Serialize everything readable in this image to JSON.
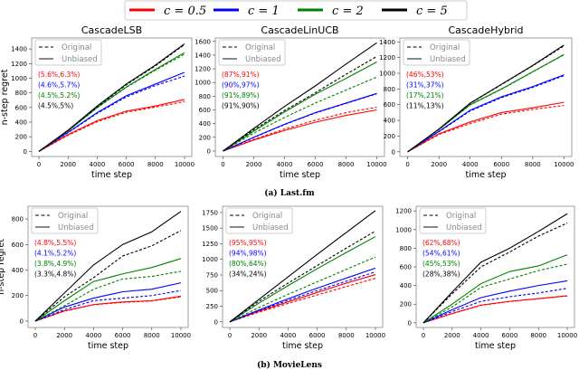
{
  "legend": {
    "position": "top-center",
    "entries": [
      {
        "label": "c = 0.5",
        "color": "#ff0000"
      },
      {
        "label": "c = 1",
        "color": "#0000ff"
      },
      {
        "label": "c = 2",
        "color": "#008000"
      },
      {
        "label": "c = 5",
        "color": "#000000"
      }
    ]
  },
  "captions": [
    "(a) Last.fm",
    "(b) MovieLens"
  ],
  "chart_data": [
    {
      "type": "line",
      "title": "CascadeLSB",
      "dataset": "Last.fm",
      "xlabel": "time step",
      "ylabel": "n-step regret",
      "xlim": [
        -500,
        10500
      ],
      "ylim": [
        -70,
        1550
      ],
      "xticks": [
        0,
        2000,
        4000,
        6000,
        8000,
        10000
      ],
      "yticks": [
        0,
        200,
        400,
        600,
        800,
        1000,
        1200,
        1400
      ],
      "style_legend": [
        "Original",
        "Unbiased"
      ],
      "annotations": [
        "(5.6%,6.3%)",
        "(4.6%,5.7%)",
        "(4.5%,5.2%)",
        "(4.5%,5%)"
      ],
      "x": [
        0,
        2000,
        4000,
        6000,
        8000,
        10000
      ],
      "series": [
        {
          "c": "0.5",
          "unbiased": [
            0,
            230,
            420,
            550,
            620,
            710
          ],
          "original": [
            0,
            220,
            405,
            535,
            605,
            680
          ]
        },
        {
          "c": "1",
          "unbiased": [
            0,
            260,
            530,
            760,
            920,
            1080
          ],
          "original": [
            0,
            255,
            520,
            745,
            900,
            1030
          ]
        },
        {
          "c": "2",
          "unbiased": [
            0,
            280,
            600,
            880,
            1120,
            1350
          ],
          "original": [
            0,
            280,
            595,
            875,
            1110,
            1330
          ]
        },
        {
          "c": "5",
          "unbiased": [
            0,
            290,
            620,
            920,
            1180,
            1470
          ],
          "original": [
            0,
            285,
            610,
            910,
            1170,
            1460
          ]
        }
      ]
    },
    {
      "type": "line",
      "title": "CascadeLinUCB",
      "dataset": "Last.fm",
      "xlabel": "time step",
      "ylabel": "",
      "xlim": [
        -500,
        10500
      ],
      "ylim": [
        -80,
        1650
      ],
      "xticks": [
        0,
        2000,
        4000,
        6000,
        8000,
        10000
      ],
      "yticks": [
        0,
        200,
        400,
        600,
        800,
        1000,
        1200,
        1400,
        1600
      ],
      "style_legend": [
        "Original",
        "Unbiased"
      ],
      "annotations": [
        "(87%,91%)",
        "(90%,97%)",
        "(91%,89%)",
        "(91%,90%)"
      ],
      "x": [
        0,
        2000,
        4000,
        6000,
        8000,
        10000
      ],
      "series": [
        {
          "c": "0.5",
          "unbiased": [
            0,
            160,
            300,
            420,
            520,
            600
          ],
          "original": [
            0,
            170,
            320,
            450,
            560,
            640
          ]
        },
        {
          "c": "1",
          "unbiased": [
            0,
            200,
            390,
            560,
            700,
            840
          ],
          "original": [
            0,
            198,
            385,
            555,
            695,
            835
          ]
        },
        {
          "c": "2",
          "unbiased": [
            0,
            290,
            570,
            830,
            1060,
            1300
          ],
          "original": [
            0,
            260,
            490,
            700,
            890,
            1080
          ]
        },
        {
          "c": "5",
          "unbiased": [
            0,
            330,
            650,
            950,
            1270,
            1580
          ],
          "original": [
            0,
            310,
            590,
            850,
            1120,
            1380
          ]
        }
      ]
    },
    {
      "type": "line",
      "title": "CascadeHybrid",
      "dataset": "Last.fm",
      "xlabel": "time step",
      "ylabel": "",
      "xlim": [
        -500,
        10500
      ],
      "ylim": [
        -60,
        1450
      ],
      "xticks": [
        0,
        2000,
        4000,
        6000,
        8000,
        10000
      ],
      "yticks": [
        0,
        200,
        400,
        600,
        800,
        1000,
        1200,
        1400
      ],
      "style_legend": [
        "Original",
        "Unbiased"
      ],
      "annotations": [
        "(46%,53%)",
        "(31%,37%)",
        "(17%,21%)",
        "(11%,13%)"
      ],
      "x": [
        0,
        2000,
        4000,
        6000,
        8000,
        10000
      ],
      "series": [
        {
          "c": "0.5",
          "unbiased": [
            0,
            230,
            380,
            500,
            560,
            630
          ],
          "original": [
            0,
            220,
            360,
            480,
            540,
            590
          ]
        },
        {
          "c": "1",
          "unbiased": [
            0,
            260,
            530,
            700,
            830,
            980
          ],
          "original": [
            0,
            255,
            520,
            690,
            820,
            970
          ]
        },
        {
          "c": "2",
          "unbiased": [
            0,
            285,
            600,
            800,
            1020,
            1240
          ],
          "original": [
            0,
            283,
            597,
            797,
            1017,
            1236
          ]
        },
        {
          "c": "5",
          "unbiased": [
            0,
            290,
            620,
            860,
            1100,
            1360
          ],
          "original": [
            0,
            288,
            617,
            856,
            1096,
            1350
          ]
        }
      ]
    },
    {
      "type": "line",
      "title": "",
      "dataset": "MovieLens",
      "xlabel": "time step",
      "ylabel": "n-step regret",
      "xlim": [
        -500,
        10500
      ],
      "ylim": [
        -50,
        900
      ],
      "xticks": [
        0,
        2000,
        4000,
        6000,
        8000,
        10000
      ],
      "yticks": [
        0,
        200,
        400,
        600,
        800
      ],
      "style_legend": [
        "Original",
        "Unbiased"
      ],
      "annotations": [
        "(4.8%,5.5%)",
        "(4.1%,5.2%)",
        "(3.8%,4.9%)",
        "(3.3%,4.8%)"
      ],
      "x": [
        0,
        2000,
        4000,
        6000,
        8000,
        10000
      ],
      "series": [
        {
          "c": "0.5",
          "unbiased": [
            0,
            80,
            130,
            150,
            160,
            195
          ],
          "original": [
            0,
            78,
            128,
            147,
            158,
            190
          ]
        },
        {
          "c": "1",
          "unbiased": [
            0,
            110,
            180,
            230,
            250,
            300
          ],
          "original": [
            0,
            90,
            160,
            180,
            200,
            240
          ]
        },
        {
          "c": "2",
          "unbiased": [
            0,
            160,
            310,
            370,
            420,
            490
          ],
          "original": [
            0,
            120,
            250,
            330,
            350,
            390
          ]
        },
        {
          "c": "5",
          "unbiased": [
            0,
            220,
            440,
            600,
            700,
            860
          ],
          "original": [
            0,
            190,
            340,
            510,
            590,
            710
          ]
        }
      ]
    },
    {
      "type": "line",
      "title": "",
      "dataset": "MovieLens",
      "xlabel": "time step",
      "ylabel": "",
      "xlim": [
        -500,
        10500
      ],
      "ylim": [
        -90,
        1850
      ],
      "xticks": [
        0,
        2000,
        4000,
        6000,
        8000,
        10000
      ],
      "yticks": [
        0,
        250,
        500,
        750,
        1000,
        1250,
        1500,
        1750
      ],
      "style_legend": [
        "Original",
        "Unbiased"
      ],
      "annotations": [
        "(95%,95%)",
        "(94%,98%)",
        "(80%,64%)",
        "(34%,24%)"
      ],
      "x": [
        0,
        2000,
        4000,
        6000,
        8000,
        10000
      ],
      "series": [
        {
          "c": "0.5",
          "unbiased": [
            0,
            170,
            320,
            470,
            620,
            756
          ],
          "original": [
            0,
            155,
            295,
            430,
            565,
            697
          ]
        },
        {
          "c": "1",
          "unbiased": [
            0,
            190,
            370,
            540,
            700,
            860
          ],
          "original": [
            0,
            180,
            345,
            500,
            650,
            800
          ]
        },
        {
          "c": "2",
          "unbiased": [
            0,
            300,
            580,
            850,
            1110,
            1364
          ],
          "original": [
            0,
            230,
            440,
            640,
            840,
            1038
          ]
        },
        {
          "c": "5",
          "unbiased": [
            0,
            360,
            720,
            1080,
            1430,
            1780
          ],
          "original": [
            0,
            330,
            620,
            900,
            1180,
            1453
          ]
        }
      ]
    },
    {
      "type": "line",
      "title": "",
      "dataset": "MovieLens",
      "xlabel": "time step",
      "ylabel": "",
      "xlim": [
        -500,
        10500
      ],
      "ylim": [
        -50,
        1250
      ],
      "xticks": [
        0,
        2000,
        4000,
        6000,
        8000,
        10000
      ],
      "yticks": [
        0,
        200,
        400,
        600,
        800,
        1000,
        1200
      ],
      "style_legend": [
        "Original",
        "Unbiased"
      ],
      "annotations": [
        "(62%,68%)",
        "(54%,61%)",
        "(45%,53%)",
        "(28%,38%)"
      ],
      "x": [
        0,
        2000,
        4000,
        6000,
        8000,
        10000
      ],
      "series": [
        {
          "c": "0.5",
          "unbiased": [
            0,
            100,
            190,
            230,
            260,
            290
          ],
          "original": [
            0,
            98,
            187,
            228,
            258,
            288
          ]
        },
        {
          "c": "1",
          "unbiased": [
            0,
            140,
            270,
            340,
            400,
            450
          ],
          "original": [
            0,
            120,
            230,
            280,
            320,
            370
          ]
        },
        {
          "c": "2",
          "unbiased": [
            0,
            200,
            420,
            550,
            610,
            730
          ],
          "original": [
            0,
            170,
            380,
            470,
            560,
            630
          ]
        },
        {
          "c": "5",
          "unbiased": [
            0,
            330,
            650,
            800,
            980,
            1170
          ],
          "original": [
            0,
            310,
            600,
            760,
            930,
            1070
          ]
        }
      ]
    }
  ]
}
